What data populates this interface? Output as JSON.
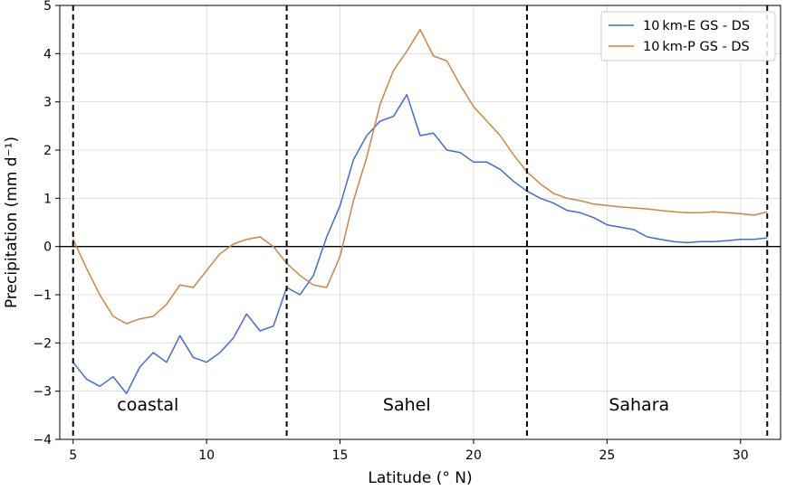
{
  "chart_data": {
    "type": "line",
    "xlabel": "Latitude (° N)",
    "ylabel": "Precipitation (mm d⁻¹)",
    "xlim": [
      4.5,
      31.5
    ],
    "ylim": [
      -4,
      5
    ],
    "xticks": [
      5,
      10,
      15,
      20,
      25,
      30
    ],
    "yticks": [
      -4,
      -3,
      -2,
      -1,
      0,
      1,
      2,
      3,
      4,
      5
    ],
    "grid": true,
    "legend_position": "top-right",
    "zero_line": 0,
    "region_boundaries": [
      5,
      13,
      22,
      31
    ],
    "regions": [
      {
        "label": "coastal",
        "x": 7.8
      },
      {
        "label": "Sahel",
        "x": 17.5
      },
      {
        "label": "Sahara",
        "x": 26.2
      }
    ],
    "series": [
      {
        "name": "10 km-E GS - DS",
        "color": "#4169e1",
        "x": [
          5,
          5.5,
          6,
          6.5,
          7,
          7.5,
          8,
          8.5,
          9,
          9.5,
          10,
          10.5,
          11,
          11.5,
          12,
          12.5,
          13,
          13.5,
          14,
          14.5,
          15,
          15.5,
          16,
          16.5,
          17,
          17.5,
          18,
          18.5,
          19,
          19.5,
          20,
          20.5,
          21,
          21.5,
          22,
          22.5,
          23,
          23.5,
          24,
          24.5,
          25,
          25.5,
          26,
          26.5,
          27,
          27.5,
          28,
          28.5,
          29,
          29.5,
          30,
          30.5,
          31
        ],
        "y": [
          -2.4,
          -2.75,
          -2.9,
          -2.7,
          -3.05,
          -2.5,
          -2.2,
          -2.4,
          -1.85,
          -2.3,
          -2.4,
          -2.2,
          -1.9,
          -1.4,
          -1.75,
          -1.65,
          -0.85,
          -1.0,
          -0.6,
          0.2,
          0.85,
          1.8,
          2.3,
          2.6,
          2.7,
          3.15,
          2.3,
          2.35,
          2.0,
          1.95,
          1.75,
          1.75,
          1.6,
          1.35,
          1.15,
          1.0,
          0.9,
          0.75,
          0.7,
          0.6,
          0.45,
          0.4,
          0.35,
          0.2,
          0.15,
          0.1,
          0.08,
          0.1,
          0.1,
          0.12,
          0.15,
          0.15,
          0.18
        ]
      },
      {
        "name": "10 km-P GS - DS",
        "color": "#cd853f",
        "x": [
          5,
          5.5,
          6,
          6.5,
          7,
          7.5,
          8,
          8.5,
          9,
          9.5,
          10,
          10.5,
          11,
          11.5,
          12,
          12.5,
          13,
          13.5,
          14,
          14.5,
          15,
          15.5,
          16,
          16.5,
          17,
          17.5,
          18,
          18.5,
          19,
          19.5,
          20,
          20.5,
          21,
          21.5,
          22,
          22.5,
          23,
          23.5,
          24,
          24.5,
          25,
          25.5,
          26,
          26.5,
          27,
          27.5,
          28,
          28.5,
          29,
          29.5,
          30,
          30.5,
          31
        ],
        "y": [
          0.15,
          -0.45,
          -1.0,
          -1.45,
          -1.6,
          -1.5,
          -1.45,
          -1.2,
          -0.8,
          -0.85,
          -0.5,
          -0.15,
          0.05,
          0.15,
          0.2,
          0.0,
          -0.35,
          -0.6,
          -0.8,
          -0.85,
          -0.2,
          0.95,
          1.85,
          2.95,
          3.65,
          4.05,
          4.5,
          3.95,
          3.85,
          3.35,
          2.9,
          2.6,
          2.3,
          1.9,
          1.55,
          1.3,
          1.1,
          1.0,
          0.95,
          0.88,
          0.85,
          0.82,
          0.8,
          0.78,
          0.75,
          0.72,
          0.7,
          0.7,
          0.72,
          0.7,
          0.68,
          0.65,
          0.72
        ]
      }
    ]
  }
}
